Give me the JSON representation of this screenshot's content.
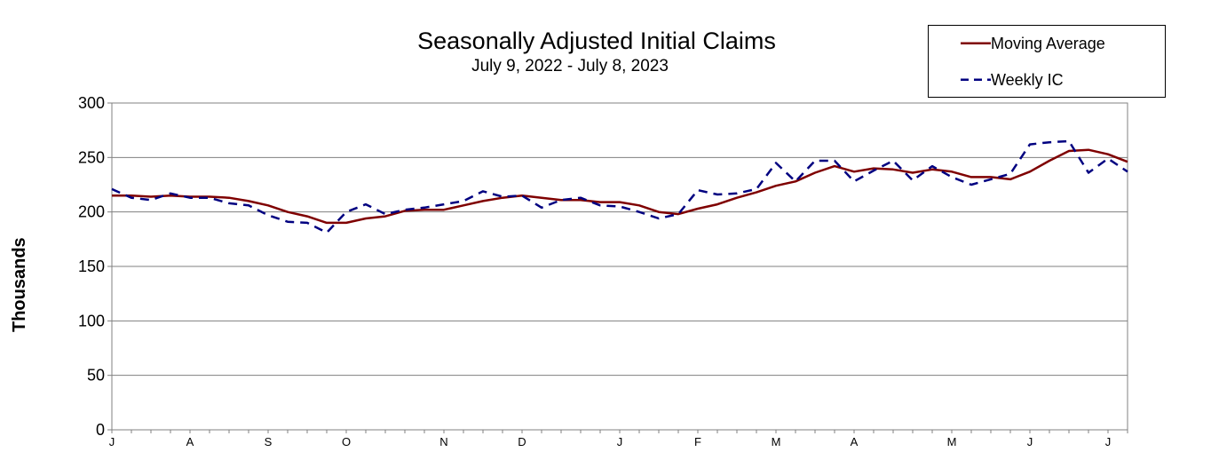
{
  "chart_data": {
    "type": "line",
    "title": "Seasonally Adjusted Initial Claims",
    "subtitle": "July 9, 2022 - July 8, 2023",
    "ylabel": "Thousands",
    "xlabel": "",
    "ylim": [
      0,
      300
    ],
    "yticks": [
      0,
      50,
      100,
      150,
      200,
      250,
      300
    ],
    "xtick_labels": [
      "J",
      "A",
      "S",
      "O",
      "N",
      "D",
      "J",
      "F",
      "M",
      "A",
      "M",
      "J",
      "J"
    ],
    "xtick_weeks": [
      0,
      4,
      8,
      12,
      17,
      21,
      26,
      30,
      34,
      38,
      43,
      47,
      51
    ],
    "grid": "horizontal",
    "legend_position": "top-right",
    "series": [
      {
        "name": "Moving Average",
        "color": "#7f0000",
        "style": "solid",
        "values": [
          215,
          215,
          214,
          215,
          214,
          214,
          213,
          210,
          206,
          200,
          196,
          190,
          190,
          194,
          196,
          201,
          202,
          202,
          206,
          210,
          213,
          215,
          213,
          211,
          211,
          209,
          209,
          206,
          200,
          198,
          203,
          207,
          213,
          218,
          224,
          228,
          236,
          242,
          237,
          240,
          239,
          236,
          239,
          237,
          232,
          232,
          230,
          237,
          247,
          256,
          257,
          253,
          246
        ]
      },
      {
        "name": "Weekly IC",
        "color": "#000080",
        "style": "dashed",
        "values": [
          221,
          213,
          211,
          217,
          213,
          213,
          208,
          206,
          197,
          191,
          190,
          181,
          200,
          207,
          198,
          202,
          204,
          207,
          210,
          219,
          214,
          215,
          204,
          211,
          213,
          206,
          205,
          200,
          194,
          198,
          220,
          216,
          217,
          221,
          245,
          228,
          247,
          247,
          228,
          238,
          247,
          229,
          242,
          232,
          225,
          230,
          235,
          262,
          264,
          265,
          236,
          249,
          237
        ]
      }
    ]
  }
}
